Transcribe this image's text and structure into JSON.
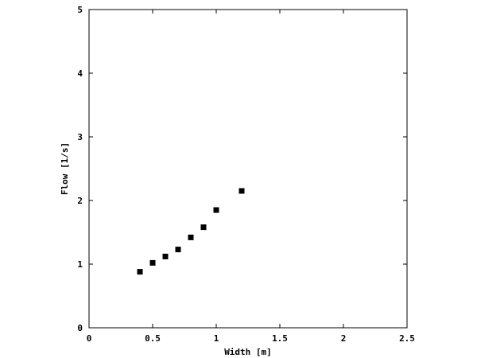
{
  "chart_data": {
    "type": "scatter",
    "title": "",
    "xlabel": "Width [m]",
    "ylabel": "Flow [1/s]",
    "xlim": [
      0,
      2.5
    ],
    "ylim": [
      0,
      5
    ],
    "grid": false,
    "legend": "none",
    "x_ticks": [
      "0",
      "0.5",
      "1",
      "1.5",
      "2",
      "2.5"
    ],
    "x_tick_values": [
      0,
      0.5,
      1,
      1.5,
      2,
      2.5
    ],
    "y_ticks": [
      "0",
      "1",
      "2",
      "3",
      "4",
      "5"
    ],
    "y_tick_values": [
      0,
      1,
      2,
      3,
      4,
      5
    ],
    "series": [
      {
        "marker": "square",
        "color": "#000000",
        "points": [
          {
            "x": 0.4,
            "y": 0.88
          },
          {
            "x": 0.5,
            "y": 1.02
          },
          {
            "x": 0.6,
            "y": 1.12
          },
          {
            "x": 0.7,
            "y": 1.23
          },
          {
            "x": 0.8,
            "y": 1.42
          },
          {
            "x": 0.9,
            "y": 1.58
          },
          {
            "x": 1.0,
            "y": 1.85
          },
          {
            "x": 1.2,
            "y": 2.15
          }
        ]
      }
    ]
  }
}
